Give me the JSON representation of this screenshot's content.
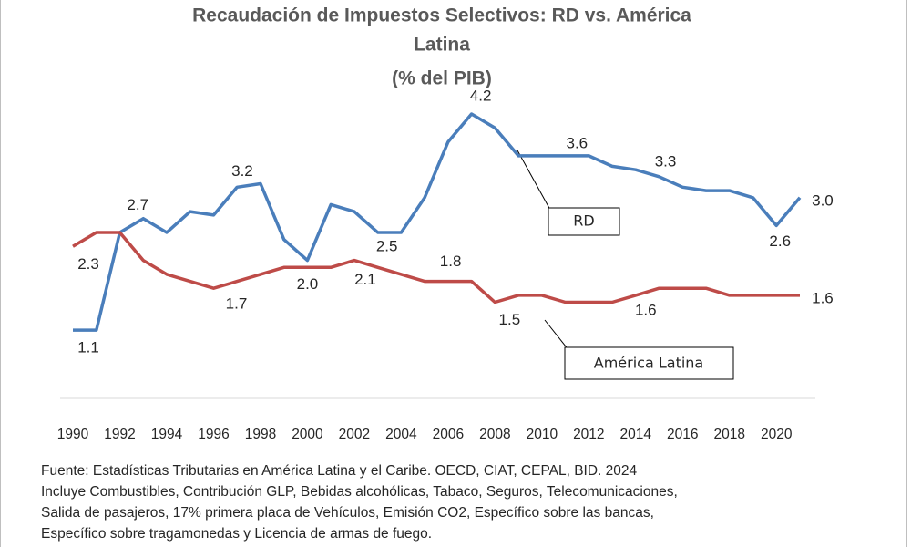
{
  "chart_data": {
    "type": "line",
    "title": [
      "Recaudación de Impuestos Selectivos: RD vs. América",
      "Latina",
      "(% del PIB)"
    ],
    "x": [
      1990,
      1991,
      1992,
      1993,
      1994,
      1995,
      1996,
      1997,
      1998,
      1999,
      2000,
      2001,
      2002,
      2003,
      2004,
      2005,
      2006,
      2007,
      2008,
      2009,
      2010,
      2011,
      2012,
      2013,
      2014,
      2015,
      2016,
      2017,
      2018,
      2019,
      2020,
      2021
    ],
    "xlim": [
      1989,
      2022
    ],
    "xticks": [
      1990,
      1992,
      1994,
      1996,
      1998,
      2000,
      2002,
      2004,
      2006,
      2008,
      2010,
      2012,
      2014,
      2016,
      2018,
      2020
    ],
    "ylim": [
      0.5,
      4.6
    ],
    "series": [
      {
        "name": "RD",
        "color": "#4a7ebb",
        "values": [
          1.1,
          1.1,
          2.5,
          2.7,
          2.5,
          2.8,
          2.75,
          3.15,
          3.2,
          2.4,
          2.1,
          2.9,
          2.8,
          2.5,
          2.5,
          3.0,
          3.8,
          4.2,
          4.0,
          3.6,
          3.6,
          3.6,
          3.6,
          3.45,
          3.4,
          3.3,
          3.15,
          3.1,
          3.1,
          3.0,
          2.6,
          3.0
        ],
        "value_labels": [
          "1.1",
          null,
          null,
          "2.7",
          null,
          null,
          null,
          null,
          "3.2",
          null,
          null,
          null,
          null,
          "2.5",
          null,
          null,
          null,
          "4.2",
          null,
          null,
          null,
          null,
          "3.6",
          null,
          null,
          "3.3",
          null,
          null,
          null,
          null,
          "2.6",
          "3.0"
        ]
      },
      {
        "name": "América Latina",
        "color": "#be4b48",
        "values": [
          2.3,
          2.5,
          2.5,
          2.1,
          1.9,
          1.8,
          1.7,
          1.8,
          1.9,
          2.0,
          2.0,
          2.0,
          2.1,
          2.0,
          1.9,
          1.8,
          1.8,
          1.8,
          1.5,
          1.6,
          1.6,
          1.5,
          1.5,
          1.5,
          1.6,
          1.7,
          1.7,
          1.7,
          1.6,
          1.6,
          1.6,
          1.6
        ],
        "value_labels": [
          "2.3",
          null,
          null,
          null,
          null,
          null,
          "1.7",
          null,
          null,
          null,
          "2.0",
          null,
          "2.1",
          null,
          null,
          null,
          null,
          "1.8",
          "1.5",
          null,
          null,
          null,
          null,
          null,
          "1.6",
          null,
          null,
          null,
          null,
          null,
          null,
          "1.6"
        ]
      }
    ],
    "notes": [
      "Fuente: Estadísticas Tributarias en América Latina y el Caribe. OECD, CIAT, CEPAL, BID. 2024",
      "Incluye Combustibles, Contribución GLP, Bebidas alcohólicas, Tabaco, Seguros, Telecomunicaciones,",
      "Salida de pasajeros, 17% primera placa de Vehículos, Emisión CO2, Específico sobre las bancas,",
      "Específico sobre tragamonedas y Licencia de armas de fuego."
    ]
  }
}
